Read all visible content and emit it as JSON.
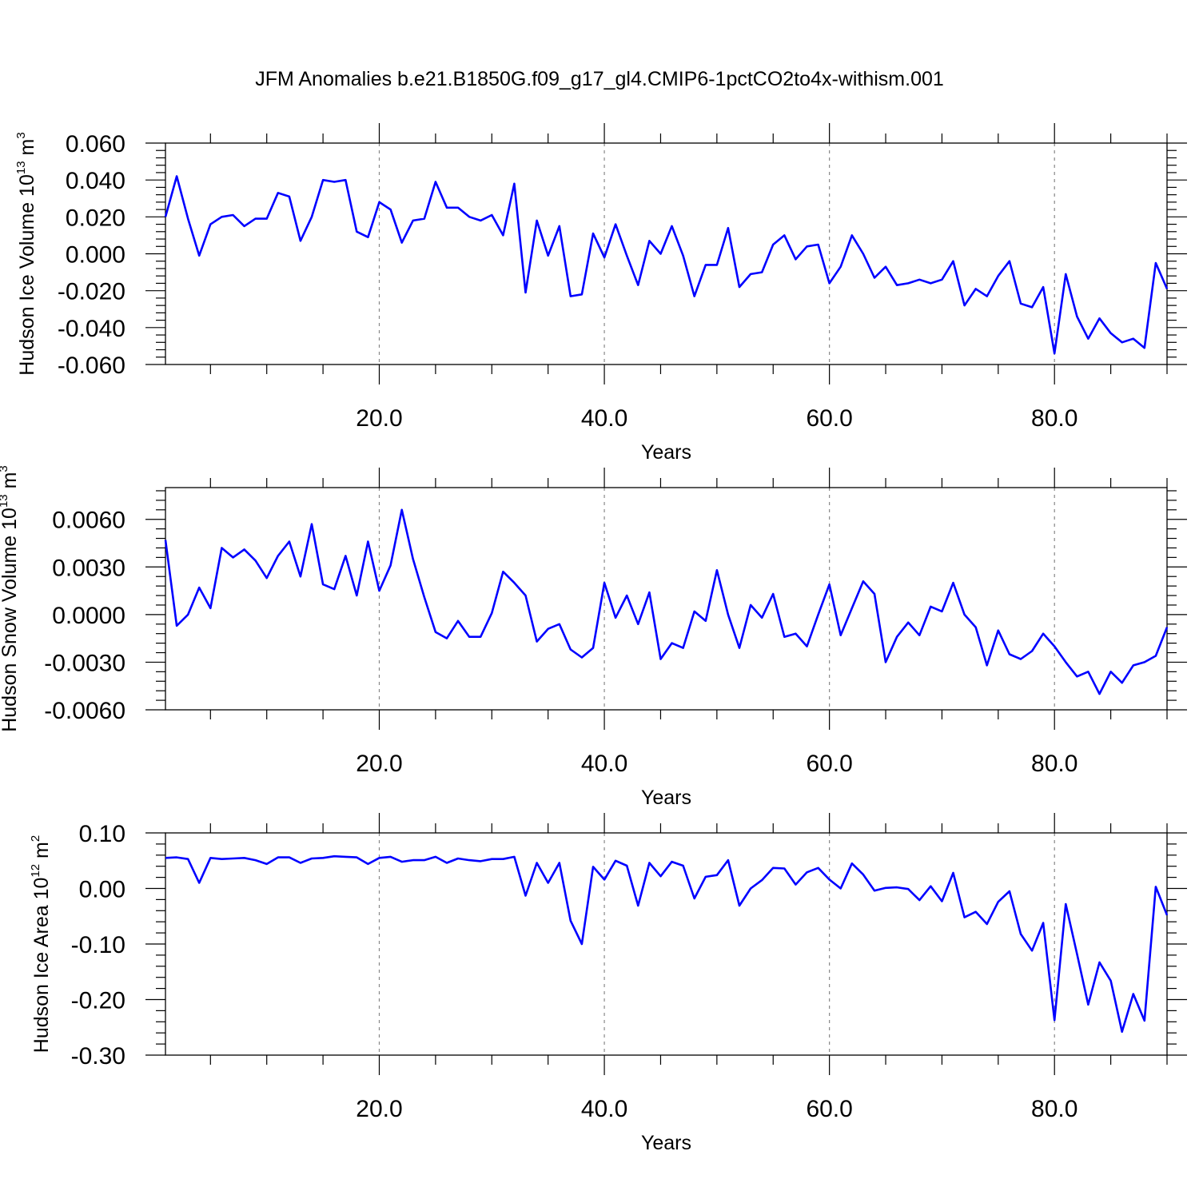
{
  "title": "JFM Anomalies b.e21.B1850G.f09_g17_gl4.CMIP6-1pctCO2to4x-withism.001",
  "chart_data": [
    {
      "type": "line",
      "title": "",
      "xlabel": "Years",
      "ylabel": "Hudson Ice Volume 10",
      "ylabel_exp": "13",
      "ylabel_unit": " m",
      "ylabel_unit_exp": "3",
      "xlim": [
        1,
        90
      ],
      "ylim": [
        -0.06,
        0.06
      ],
      "x_ticks": [
        20,
        40,
        60,
        80
      ],
      "x_tick_labels": [
        "20.0",
        "40.0",
        "60.0",
        "80.0"
      ],
      "y_ticks": [
        0.06,
        0.04,
        0.02,
        0.0,
        -0.02,
        -0.04,
        -0.06
      ],
      "y_tick_labels": [
        "0.060",
        "0.040",
        "0.020",
        "0.000",
        "-0.020",
        "-0.040",
        "-0.060"
      ],
      "grid": "vertical dashed at major x ticks",
      "series_color": "#0000ff",
      "x": [
        1,
        2,
        3,
        4,
        5,
        6,
        7,
        8,
        9,
        10,
        11,
        12,
        13,
        14,
        15,
        16,
        17,
        18,
        19,
        20,
        21,
        22,
        23,
        24,
        25,
        26,
        27,
        28,
        29,
        30,
        31,
        32,
        33,
        34,
        35,
        36,
        37,
        38,
        39,
        40,
        41,
        42,
        43,
        44,
        45,
        46,
        47,
        48,
        49,
        50,
        51,
        52,
        53,
        54,
        55,
        56,
        57,
        58,
        59,
        60,
        61,
        62,
        63,
        64,
        65,
        66,
        67,
        68,
        69,
        70,
        71,
        72,
        73,
        74,
        75,
        76,
        77,
        78,
        79,
        80,
        81,
        82,
        83,
        84,
        85,
        86,
        87,
        88,
        89,
        90
      ],
      "values": [
        0.02,
        0.042,
        0.019,
        -0.001,
        0.016,
        0.02,
        0.021,
        0.015,
        0.019,
        0.019,
        0.033,
        0.031,
        0.007,
        0.02,
        0.04,
        0.039,
        0.04,
        0.012,
        0.009,
        0.028,
        0.024,
        0.006,
        0.018,
        0.019,
        0.039,
        0.025,
        0.025,
        0.02,
        0.018,
        0.021,
        0.01,
        0.038,
        -0.021,
        0.018,
        -0.001,
        0.015,
        -0.023,
        -0.022,
        0.011,
        -0.002,
        0.016,
        -0.001,
        -0.017,
        0.007,
        0.0,
        0.015,
        -0.001,
        -0.023,
        -0.006,
        -0.006,
        0.014,
        -0.018,
        -0.011,
        -0.01,
        0.005,
        0.01,
        -0.003,
        0.004,
        0.005,
        -0.016,
        -0.007,
        0.01,
        0.0,
        -0.013,
        -0.007,
        -0.017,
        -0.016,
        -0.014,
        -0.016,
        -0.014,
        -0.004,
        -0.028,
        -0.019,
        -0.023,
        -0.012,
        -0.004,
        -0.027,
        -0.029,
        -0.018,
        -0.054,
        -0.011,
        -0.034,
        -0.046,
        -0.035,
        -0.043,
        -0.048,
        -0.046,
        -0.051,
        -0.005,
        -0.019
      ]
    },
    {
      "type": "line",
      "title": "",
      "xlabel": "Years",
      "ylabel": "Hudson Snow Volume 10",
      "ylabel_exp": "13",
      "ylabel_unit": " m",
      "ylabel_unit_exp": "3",
      "xlim": [
        1,
        90
      ],
      "ylim": [
        -0.006,
        0.008
      ],
      "x_ticks": [
        20,
        40,
        60,
        80
      ],
      "x_tick_labels": [
        "20.0",
        "40.0",
        "60.0",
        "80.0"
      ],
      "y_ticks": [
        0.006,
        0.003,
        0.0,
        -0.003,
        -0.006
      ],
      "y_tick_labels": [
        "0.0060",
        "0.0030",
        "0.0000",
        "-0.0030",
        "-0.0060"
      ],
      "grid": "vertical dashed at major x ticks",
      "series_color": "#0000ff",
      "x": [
        1,
        2,
        3,
        4,
        5,
        6,
        7,
        8,
        9,
        10,
        11,
        12,
        13,
        14,
        15,
        16,
        17,
        18,
        19,
        20,
        21,
        22,
        23,
        24,
        25,
        26,
        27,
        28,
        29,
        30,
        31,
        32,
        33,
        34,
        35,
        36,
        37,
        38,
        39,
        40,
        41,
        42,
        43,
        44,
        45,
        46,
        47,
        48,
        49,
        50,
        51,
        52,
        53,
        54,
        55,
        56,
        57,
        58,
        59,
        60,
        61,
        62,
        63,
        64,
        65,
        66,
        67,
        68,
        69,
        70,
        71,
        72,
        73,
        74,
        75,
        76,
        77,
        78,
        79,
        80,
        81,
        82,
        83,
        84,
        85,
        86,
        87,
        88,
        89,
        90
      ],
      "values": [
        0.0047,
        -0.0007,
        0.0,
        0.0017,
        0.0004,
        0.0042,
        0.0036,
        0.0041,
        0.0034,
        0.0023,
        0.0037,
        0.0046,
        0.0024,
        0.0057,
        0.0019,
        0.0016,
        0.0037,
        0.0012,
        0.0046,
        0.0015,
        0.0031,
        0.0066,
        0.0035,
        0.0011,
        -0.0011,
        -0.0015,
        -0.0004,
        -0.0014,
        -0.0014,
        0.0001,
        0.0027,
        0.002,
        0.0012,
        -0.0017,
        -0.0009,
        -0.0006,
        -0.0022,
        -0.0027,
        -0.0021,
        0.002,
        -0.0002,
        0.0012,
        -0.0006,
        0.0014,
        -0.0028,
        -0.0018,
        -0.0021,
        0.0002,
        -0.0004,
        0.0028,
        0.0,
        -0.0021,
        0.0006,
        -0.0002,
        0.0013,
        -0.0014,
        -0.0012,
        -0.002,
        0.0,
        0.0019,
        -0.0013,
        0.0004,
        0.0021,
        0.0013,
        -0.003,
        -0.0014,
        -0.0005,
        -0.0013,
        0.0005,
        0.0002,
        0.002,
        0.0,
        -0.0008,
        -0.0032,
        -0.001,
        -0.0025,
        -0.0028,
        -0.0023,
        -0.0012,
        -0.002,
        -0.003,
        -0.0039,
        -0.0036,
        -0.005,
        -0.0036,
        -0.0043,
        -0.0032,
        -0.003,
        -0.0026,
        -0.0008
      ]
    },
    {
      "type": "line",
      "title": "",
      "xlabel": "Years",
      "ylabel": "Hudson Ice Area 10",
      "ylabel_exp": "12",
      "ylabel_unit": " m",
      "ylabel_unit_exp": "2",
      "xlim": [
        1,
        90
      ],
      "ylim": [
        -0.3,
        0.1
      ],
      "x_ticks": [
        20,
        40,
        60,
        80
      ],
      "x_tick_labels": [
        "20.0",
        "40.0",
        "60.0",
        "80.0"
      ],
      "y_ticks": [
        0.1,
        0.0,
        -0.1,
        -0.2,
        -0.3
      ],
      "y_tick_labels": [
        "0.10",
        "0.00",
        "-0.10",
        "-0.20",
        "-0.30"
      ],
      "grid": "vertical dashed at major x ticks",
      "series_color": "#0000ff",
      "x": [
        1,
        2,
        3,
        4,
        5,
        6,
        7,
        8,
        9,
        10,
        11,
        12,
        13,
        14,
        15,
        16,
        17,
        18,
        19,
        20,
        21,
        22,
        23,
        24,
        25,
        26,
        27,
        28,
        29,
        30,
        31,
        32,
        33,
        34,
        35,
        36,
        37,
        38,
        39,
        40,
        41,
        42,
        43,
        44,
        45,
        46,
        47,
        48,
        49,
        50,
        51,
        52,
        53,
        54,
        55,
        56,
        57,
        58,
        59,
        60,
        61,
        62,
        63,
        64,
        65,
        66,
        67,
        68,
        69,
        70,
        71,
        72,
        73,
        74,
        75,
        76,
        77,
        78,
        79,
        80,
        81,
        82,
        83,
        84,
        85,
        86,
        87,
        88,
        89,
        90
      ],
      "values": [
        0.055,
        0.056,
        0.053,
        0.01,
        0.055,
        0.053,
        0.054,
        0.055,
        0.051,
        0.044,
        0.056,
        0.056,
        0.046,
        0.054,
        0.055,
        0.058,
        0.057,
        0.056,
        0.044,
        0.055,
        0.057,
        0.048,
        0.051,
        0.051,
        0.057,
        0.046,
        0.054,
        0.051,
        0.049,
        0.053,
        0.053,
        0.057,
        -0.013,
        0.046,
        0.01,
        0.046,
        -0.058,
        -0.1,
        0.039,
        0.016,
        0.05,
        0.041,
        -0.031,
        0.046,
        0.022,
        0.048,
        0.041,
        -0.018,
        0.021,
        0.024,
        0.051,
        -0.031,
        0.0,
        0.015,
        0.037,
        0.036,
        0.007,
        0.029,
        0.037,
        0.016,
        0.0,
        0.045,
        0.025,
        -0.004,
        0.001,
        0.002,
        -0.001,
        -0.021,
        0.004,
        -0.023,
        0.028,
        -0.052,
        -0.042,
        -0.064,
        -0.024,
        -0.005,
        -0.082,
        -0.112,
        -0.062,
        -0.237,
        -0.028,
        -0.118,
        -0.209,
        -0.133,
        -0.166,
        -0.258,
        -0.19,
        -0.238,
        0.003,
        -0.048
      ]
    }
  ]
}
